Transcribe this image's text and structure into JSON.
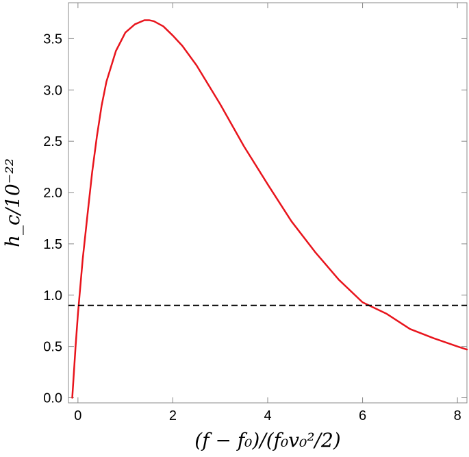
{
  "chart_data": {
    "type": "line",
    "title": "",
    "xlabel": "(f − f₀)/(f₀v₀²/2)",
    "ylabel": "h_c/10⁻²²",
    "xlim": [
      -0.2,
      8.2
    ],
    "ylim": [
      -0.05,
      3.85
    ],
    "x_ticks": [
      0,
      2,
      4,
      6,
      8
    ],
    "y_ticks": [
      0.0,
      0.5,
      1.0,
      1.5,
      2.0,
      2.5,
      3.0,
      3.5
    ],
    "x_tick_labels": [
      "0",
      "2",
      "4",
      "6",
      "8"
    ],
    "y_tick_labels": [
      "0.0",
      "0.5",
      "1.0",
      "1.5",
      "2.0",
      "2.5",
      "3.0",
      "3.5"
    ],
    "grid": false,
    "colors": {
      "curve": "#e8141c",
      "threshold": "#000000"
    },
    "series": [
      {
        "style": "solid",
        "color": "#e8141c",
        "x": [
          -0.12,
          -0.05,
          0.0,
          0.1,
          0.2,
          0.3,
          0.4,
          0.5,
          0.6,
          0.8,
          1.0,
          1.2,
          1.4,
          1.5,
          1.6,
          1.8,
          2.0,
          2.2,
          2.5,
          3.0,
          3.5,
          4.0,
          4.5,
          5.0,
          5.5,
          6.0,
          6.5,
          7.0,
          7.5,
          8.0,
          8.2
        ],
        "y": [
          0.0,
          0.5,
          0.82,
          1.35,
          1.78,
          2.2,
          2.55,
          2.85,
          3.08,
          3.38,
          3.56,
          3.64,
          3.68,
          3.68,
          3.67,
          3.62,
          3.53,
          3.43,
          3.24,
          2.86,
          2.45,
          2.08,
          1.72,
          1.42,
          1.15,
          0.93,
          0.82,
          0.67,
          0.58,
          0.5,
          0.47
        ]
      },
      {
        "style": "dashed",
        "color": "#000000",
        "x": [
          -0.2,
          8.2
        ],
        "y": [
          0.9,
          0.9
        ]
      }
    ]
  }
}
